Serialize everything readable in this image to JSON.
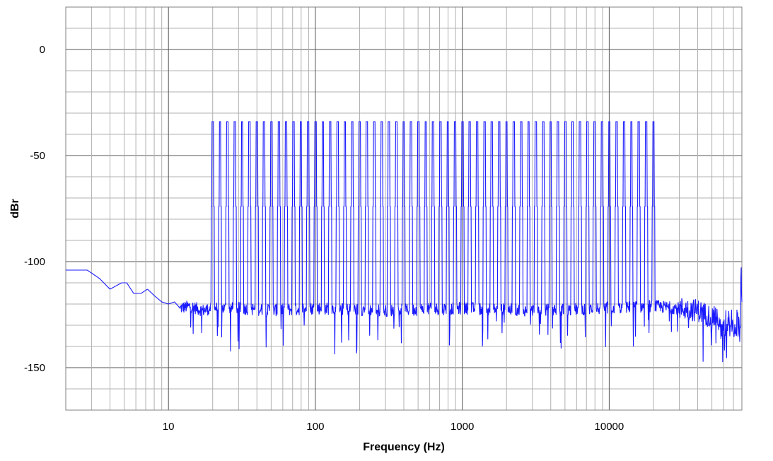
{
  "chart_data": {
    "type": "line",
    "title": "",
    "xlabel": "Frequency (Hz)",
    "ylabel": "dBr",
    "xscale": "log",
    "xlim": [
      2,
      80000
    ],
    "ylim": [
      -170,
      20
    ],
    "x_ticks": [
      {
        "value": 10,
        "label": "10"
      },
      {
        "value": 100,
        "label": "100"
      },
      {
        "value": 1000,
        "label": "1000"
      },
      {
        "value": 10000,
        "label": "10000"
      }
    ],
    "y_ticks": [
      {
        "value": 0,
        "label": "0"
      },
      {
        "value": -50,
        "label": "-50"
      },
      {
        "value": -100,
        "label": "-100"
      },
      {
        "value": -150,
        "label": "-150"
      }
    ],
    "grid": true,
    "legend": "none",
    "series_color": "#1a1aff",
    "series": [
      {
        "tones": {
          "first_hz": 20,
          "last_hz": 20000,
          "count": 61,
          "level_db": -34
        },
        "floor": [
          [
            2,
            -104
          ],
          [
            2.8,
            -104
          ],
          [
            3.4,
            -108
          ],
          [
            4,
            -113
          ],
          [
            4.8,
            -110
          ],
          [
            5.2,
            -110
          ],
          [
            5.8,
            -115
          ],
          [
            6.5,
            -115
          ],
          [
            7.2,
            -113
          ],
          [
            8,
            -116
          ],
          [
            9,
            -119
          ],
          [
            10,
            -120
          ],
          [
            11,
            -119
          ],
          [
            12,
            -122
          ],
          [
            14,
            -121
          ],
          [
            17,
            -123
          ],
          [
            20,
            -122
          ],
          [
            30,
            -122
          ],
          [
            50,
            -123
          ],
          [
            100,
            -122
          ],
          [
            300,
            -123
          ],
          [
            1000,
            -122
          ],
          [
            3000,
            -123
          ],
          [
            10000,
            -122
          ],
          [
            20000,
            -121
          ],
          [
            30000,
            -122
          ],
          [
            40000,
            -123
          ],
          [
            50000,
            -126
          ],
          [
            60000,
            -128
          ],
          [
            70000,
            -129
          ],
          [
            80000,
            -128
          ]
        ]
      }
    ]
  }
}
